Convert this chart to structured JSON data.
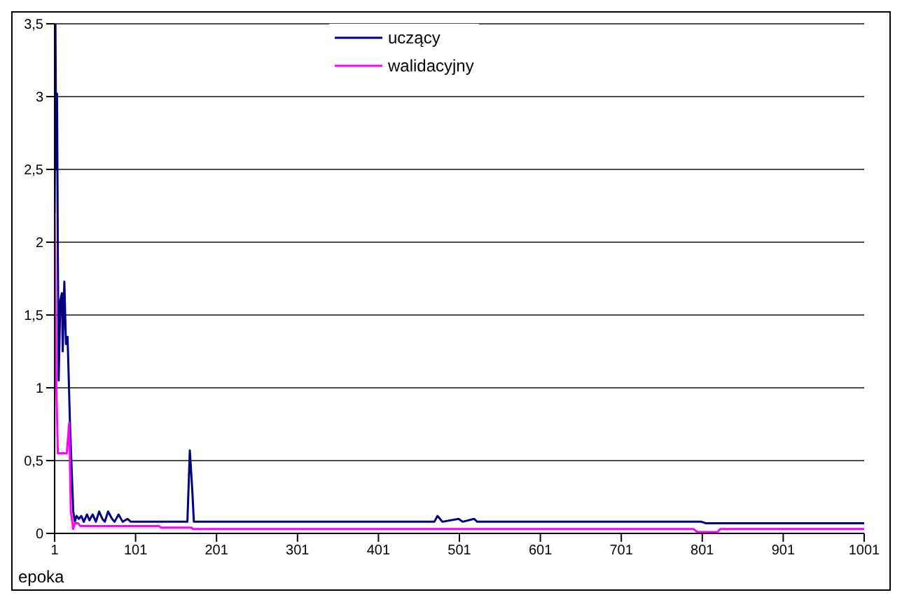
{
  "chart_data": {
    "type": "line",
    "xlabel": "epoka",
    "xlim": [
      1,
      1001
    ],
    "xticks": [
      1,
      101,
      201,
      301,
      401,
      501,
      601,
      701,
      801,
      901,
      1001
    ],
    "ylim": [
      0,
      3.5
    ],
    "yticks": [
      0,
      {
        "value": 0.5,
        "label": "0,5"
      },
      1,
      {
        "value": 1.5,
        "label": "1,5"
      },
      2,
      {
        "value": 2.5,
        "label": "2,5"
      },
      3,
      {
        "value": 3.5,
        "label": "3,5"
      }
    ],
    "grid": "y",
    "legend": "top",
    "marker": "none",
    "line_style": "solid",
    "series": [
      {
        "name": "uczący",
        "color": "#000080",
        "x": [
          1,
          2,
          3,
          4,
          5,
          6,
          8,
          10,
          11,
          13,
          15,
          17,
          20,
          24,
          26,
          28,
          31,
          34,
          37,
          41,
          44,
          48,
          52,
          56,
          60,
          63,
          67,
          72,
          75,
          80,
          85,
          91,
          95,
          165,
          168,
          171,
          173,
          470,
          474,
          480,
          500,
          505,
          519,
          523,
          560,
          800,
          805,
          1001
        ],
        "values": [
          2.2,
          3.5,
          2.5,
          3.02,
          1.9,
          1.05,
          1.6,
          1.65,
          1.25,
          1.73,
          1.3,
          1.35,
          0.75,
          0.15,
          0.08,
          0.12,
          0.1,
          0.12,
          0.08,
          0.13,
          0.09,
          0.13,
          0.08,
          0.15,
          0.1,
          0.08,
          0.15,
          0.1,
          0.08,
          0.13,
          0.08,
          0.1,
          0.08,
          0.08,
          0.57,
          0.3,
          0.08,
          0.08,
          0.12,
          0.08,
          0.1,
          0.08,
          0.1,
          0.08,
          0.08,
          0.08,
          0.07,
          0.07
        ]
      },
      {
        "name": "walidacyjny",
        "color": "#ff00ff",
        "x": [
          1,
          3,
          5,
          16,
          19,
          21,
          24,
          26,
          30,
          33,
          130,
          132,
          170,
          172,
          790,
          795,
          820,
          823,
          1001
        ],
        "values": [
          2.28,
          1.05,
          0.55,
          0.55,
          0.76,
          0.15,
          0.03,
          0.07,
          0.07,
          0.05,
          0.05,
          0.04,
          0.04,
          0.03,
          0.03,
          0.01,
          0.01,
          0.03,
          0.03
        ]
      }
    ]
  }
}
